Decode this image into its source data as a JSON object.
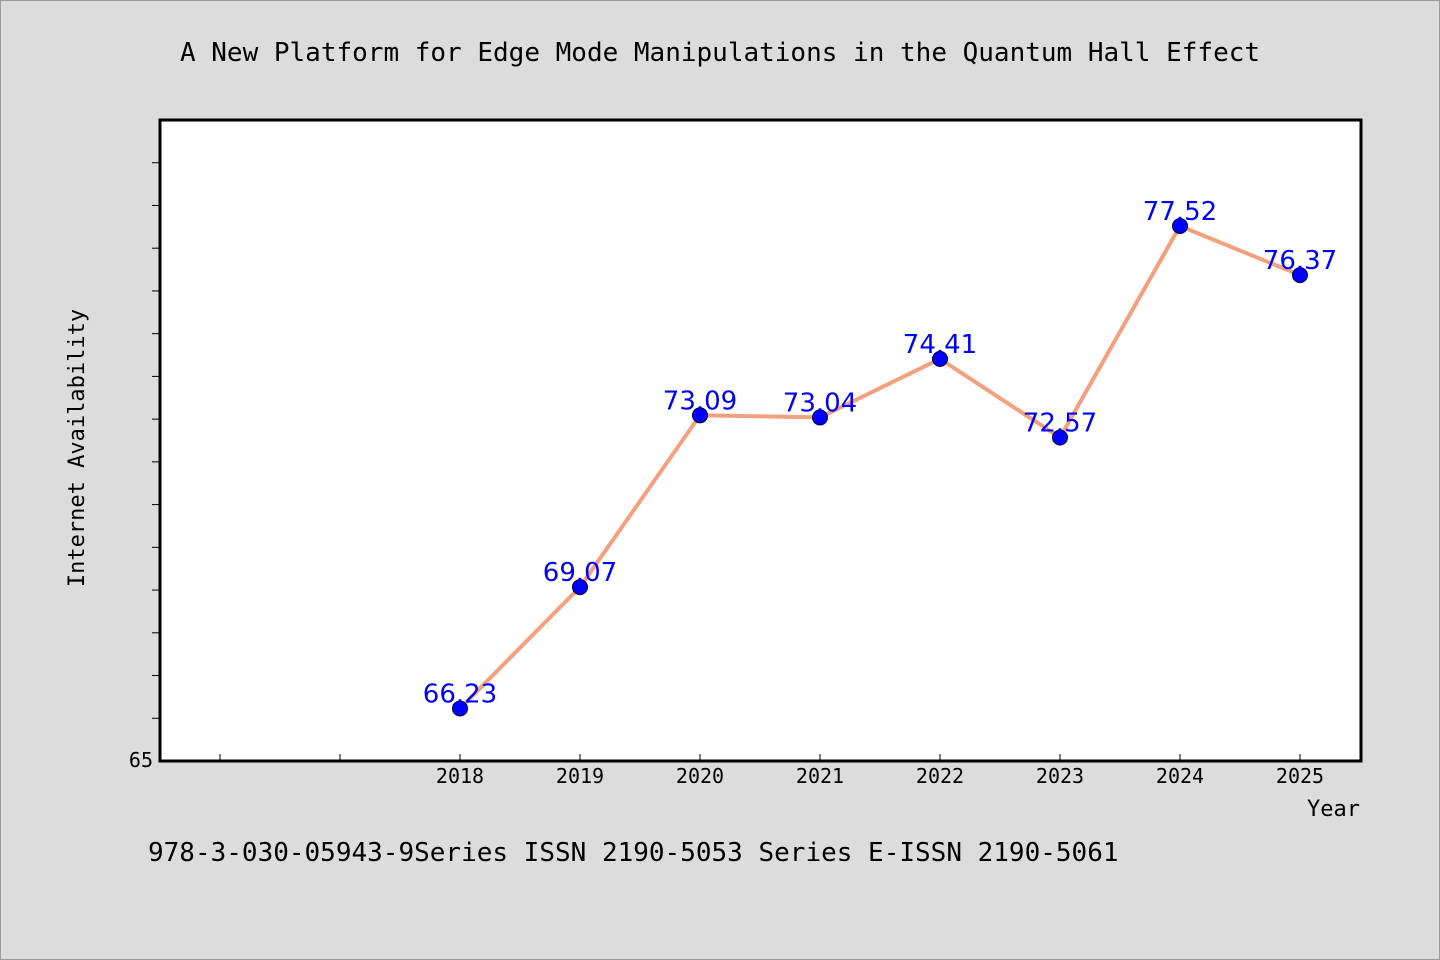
{
  "chart_data": {
    "type": "line",
    "title": "A New Platform for Edge Mode Manipulations in the Quantum Hall Effect",
    "xlabel": "Year",
    "ylabel": "Internet Availability",
    "categories": [
      "2018",
      "2019",
      "2020",
      "2021",
      "2022",
      "2023",
      "2024",
      "2025"
    ],
    "series": [
      {
        "values": [
          66.23,
          69.07,
          73.09,
          73.04,
          74.41,
          72.57,
          77.52,
          76.37
        ],
        "labels": [
          "66.23",
          "69.07",
          "73.09",
          "73.04",
          "74.41",
          "72.57",
          "77.52",
          "76.37"
        ]
      }
    ],
    "ylim": [
      65,
      80
    ],
    "y_tick_labels": [
      "65"
    ],
    "grid": false,
    "legend": "none",
    "colors": {
      "line": "#f4a07e",
      "marker": "#0000ff",
      "data_label": "#0000ff",
      "background": "#dcdcdc",
      "plot_background": "#ffffff"
    }
  },
  "footer": "978-3-030-05943-9Series ISSN 2190-5053 Series E-ISSN 2190-5061"
}
